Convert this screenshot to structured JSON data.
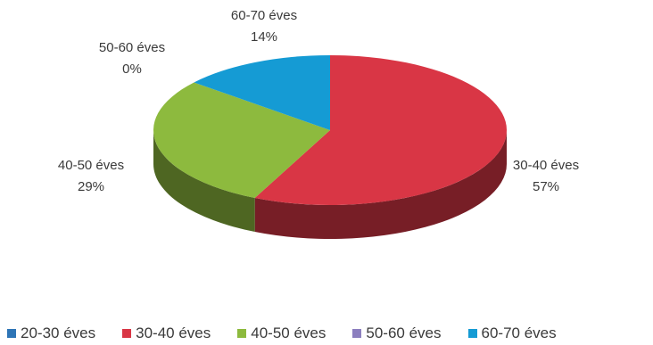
{
  "chart_data": {
    "type": "pie",
    "style": "3d",
    "title": "",
    "slices": [
      {
        "label": "20-30 éves",
        "value": 0,
        "display": "",
        "color": "#2E75B6"
      },
      {
        "label": "30-40 éves",
        "value": 57,
        "display": "57%",
        "color": "#D93645"
      },
      {
        "label": "40-50 éves",
        "value": 29,
        "display": "29%",
        "color": "#8DBA3E"
      },
      {
        "label": "50-60 éves",
        "value": 0,
        "display": "0%",
        "color": "#8C7FBF"
      },
      {
        "label": "60-70 éves",
        "value": 14,
        "display": "14%",
        "color": "#159BD4"
      }
    ],
    "legend_position": "bottom"
  }
}
